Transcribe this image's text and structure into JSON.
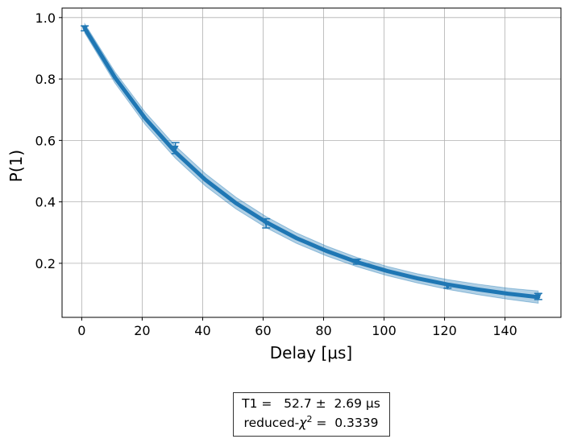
{
  "chart_data": {
    "type": "errorbar-fit",
    "x_label": "Delay [μs]",
    "y_label": "P(1)",
    "x": [
      1,
      31,
      61,
      91,
      121,
      151
    ],
    "values": [
      0.965,
      0.575,
      0.33,
      0.205,
      0.125,
      0.092
    ],
    "errors": [
      0.008,
      0.018,
      0.015,
      0.008,
      0.006,
      0.01
    ],
    "color": "#1f77b4",
    "fit_x": [
      1,
      11,
      21,
      31,
      41,
      51,
      61,
      71,
      81,
      91,
      101,
      111,
      121,
      131,
      141,
      151
    ],
    "fit_values": [
      0.965,
      0.805,
      0.672,
      0.562,
      0.471,
      0.396,
      0.334,
      0.282,
      0.24,
      0.204,
      0.175,
      0.151,
      0.131,
      0.115,
      0.101,
      0.09
    ],
    "band_lower": [
      0.95,
      0.787,
      0.652,
      0.542,
      0.451,
      0.377,
      0.316,
      0.265,
      0.224,
      0.189,
      0.16,
      0.136,
      0.115,
      0.098,
      0.083,
      0.07
    ],
    "band_upper": [
      0.98,
      0.823,
      0.692,
      0.582,
      0.491,
      0.415,
      0.352,
      0.299,
      0.256,
      0.219,
      0.19,
      0.166,
      0.147,
      0.132,
      0.119,
      0.11
    ],
    "xlim": [
      -6.5,
      158.5
    ],
    "xticks": [
      0,
      20,
      40,
      60,
      80,
      100,
      120,
      140
    ],
    "ylim": [
      0.024,
      1.031
    ],
    "yticks": [
      0.2,
      0.4,
      0.6,
      0.8,
      {
        "value": 1.0,
        "label": "1.0"
      }
    ],
    "grid": true,
    "annotation": {
      "line1": "T1 =   52.7 ±  2.69 μs",
      "prefix": "reduced-",
      "symbol": "χ",
      "sup": "2",
      "suffix": " =  0.3339"
    }
  }
}
